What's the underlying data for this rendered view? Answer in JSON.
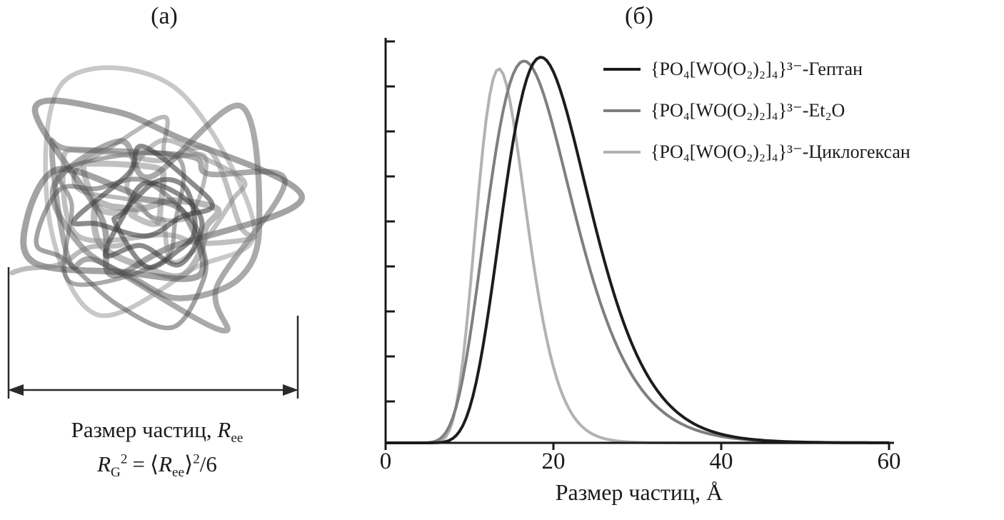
{
  "figure": {
    "panel_a_label": "(а)",
    "panel_b_label": "(б)"
  },
  "panel_a": {
    "caption_prefix": "Размер частиц, ",
    "caption_symbol": "R",
    "caption_subscript": "ee",
    "formula": {
      "R1": "R",
      "sub1": "G",
      "sup1": "2",
      "equals": "=",
      "open_angle": "⟨",
      "R2": "R",
      "sub2": "ee",
      "close_angle": "⟩",
      "sup2": "2",
      "tail": "/6"
    }
  },
  "chart_data": {
    "type": "line",
    "title": "",
    "xlabel": "Размер частиц, Å",
    "ylabel": "",
    "xlim": [
      0,
      60
    ],
    "ylim": [
      0,
      1.05
    ],
    "xticks": [
      0,
      20,
      40,
      60
    ],
    "xtick_labels": [
      "0",
      "20",
      "40",
      "60"
    ],
    "y_axis": {
      "tick_count": 9,
      "labels_shown": false
    },
    "grid": false,
    "legend_position": "top-right",
    "series": [
      {
        "name": "{PO₄[WO(O₂)₂]₄}³⁻-Гептан",
        "color": "#1c1c1c",
        "distribution": "lognormal",
        "peak_x": 18.5,
        "sigma": 0.28,
        "amplitude": 1.0
      },
      {
        "name": "{PO₄[WO(O₂)₂]₄}³⁻-Et₂O",
        "color": "#7f7f7f",
        "distribution": "lognormal",
        "peak_x": 16.5,
        "sigma": 0.31,
        "amplitude": 0.99
      },
      {
        "name": "{PO₄[WO(O₂)₂]₄}³⁻-Циклогексан",
        "color": "#b2b2b2",
        "distribution": "lognormal",
        "peak_x": 13.5,
        "sigma": 0.22,
        "amplitude": 0.97
      }
    ]
  }
}
